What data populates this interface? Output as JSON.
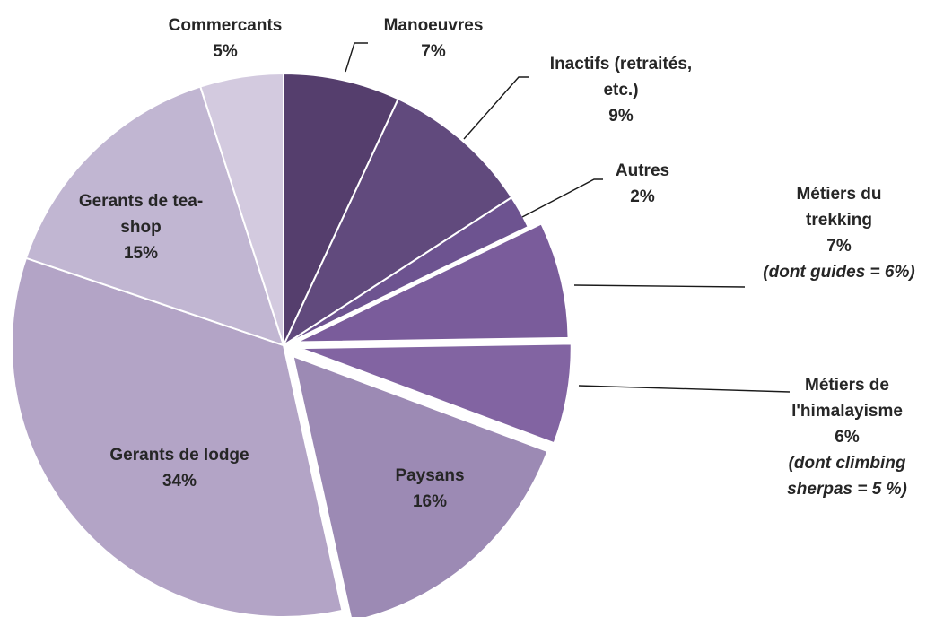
{
  "chart_data": {
    "type": "pie",
    "title": "",
    "slices": [
      {
        "name": "Manoeuvres",
        "value": 7,
        "pct": "7%",
        "color": "#553e6d",
        "lines": [
          "Manoeuvres"
        ],
        "extra": []
      },
      {
        "name": "Inactifs (retraités, etc.)",
        "value": 9,
        "pct": "9%",
        "color": "#614a7d",
        "lines": [
          "Inactifs (retraités,",
          "etc.)"
        ],
        "extra": []
      },
      {
        "name": "Autres",
        "value": 2,
        "pct": "2%",
        "color": "#6d5390",
        "lines": [
          "Autres"
        ],
        "extra": []
      },
      {
        "name": "Métiers du trekking",
        "value": 7,
        "pct": "7%",
        "color": "#7a5c9b",
        "lines": [
          "Métiers du",
          "trekking"
        ],
        "extra": [
          "(dont guides = 6%)"
        ]
      },
      {
        "name": "Métiers de l'himalayisme",
        "value": 6,
        "pct": "6%",
        "color": "#8264a2",
        "lines": [
          "Métiers de",
          "l'himalayisme"
        ],
        "extra": [
          "(dont climbing",
          "sherpas = 5 %)"
        ]
      },
      {
        "name": "Paysans",
        "value": 16,
        "pct": "16%",
        "color": "#9c8ab4",
        "lines": [
          "Paysans"
        ],
        "extra": []
      },
      {
        "name": "Gerants de lodge",
        "value": 34,
        "pct": "34%",
        "color": "#b3a4c6",
        "lines": [
          "Gerants de lodge"
        ],
        "extra": []
      },
      {
        "name": "Gerants de tea-shop",
        "value": 15,
        "pct": "15%",
        "color": "#c1b6d2",
        "lines": [
          "Gerants de tea-",
          "shop"
        ],
        "extra": []
      },
      {
        "name": "Commercants",
        "value": 5,
        "pct": "5%",
        "color": "#d3cadf",
        "lines": [
          "Commercants"
        ],
        "extra": []
      }
    ],
    "exploded": [
      "Métiers du trekking",
      "Métiers de l'himalayisme",
      "Paysans"
    ],
    "start_angle": "12 o'clock",
    "direction": "clockwise",
    "legend": "none"
  }
}
